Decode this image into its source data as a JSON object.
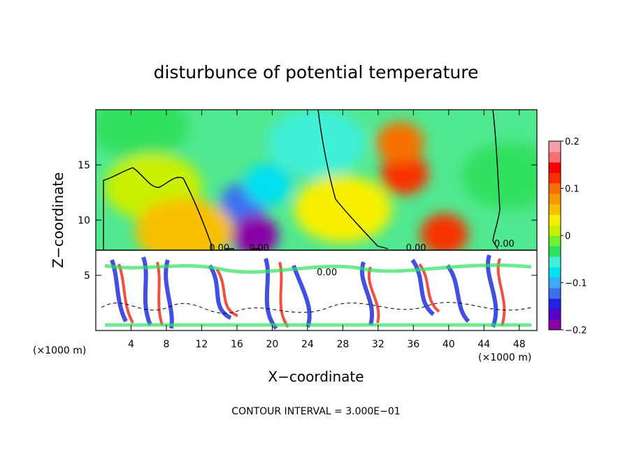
{
  "chart_data": {
    "type": "heatmap",
    "title": "disturbunce of potential temperature",
    "xlabel": "X−coordinate",
    "ylabel": "Z−coordinate",
    "x_unit_left": "(×1000 m)",
    "x_unit_right": "(×1000 m)",
    "footer": "CONTOUR INTERVAL = 3.000E−01",
    "xlim": [
      0,
      50
    ],
    "ylim": [
      0,
      20
    ],
    "x_ticks": [
      4,
      8,
      12,
      16,
      20,
      24,
      28,
      32,
      36,
      40,
      44,
      48
    ],
    "x_tick_labels": [
      "4",
      "8",
      "12",
      "16",
      "20",
      "24",
      "28",
      "32",
      "36",
      "40",
      "44",
      "48"
    ],
    "y_ticks": [
      5,
      10,
      15
    ],
    "y_tick_labels": [
      "5",
      "10",
      "15"
    ],
    "colorbar": {
      "min": -0.2,
      "max": 0.2,
      "ticks": [
        0.2,
        0.1,
        0,
        -0.1,
        -0.2
      ],
      "tick_labels": [
        "0.2",
        "0.1",
        "0",
        "−0.1",
        "−0.2"
      ],
      "colors": [
        "#8a00a8",
        "#5a00c8",
        "#2222e0",
        "#3a70f0",
        "#40a8f8",
        "#00e0f0",
        "#40f0d8",
        "#30e060",
        "#70f030",
        "#c8f000",
        "#f8f000",
        "#f8c000",
        "#f89800",
        "#f87000",
        "#f83000",
        "#f80000",
        "#f87070",
        "#f8a0a8"
      ]
    },
    "contour_labels": [
      {
        "text": "0.00",
        "x": 14.0,
        "z": 7.2
      },
      {
        "text": "0.00",
        "x": 18.5,
        "z": 7.2
      },
      {
        "text": "0.00",
        "x": 36.3,
        "z": 7.2
      },
      {
        "text": "0.00",
        "x": 46.3,
        "z": 7.6
      },
      {
        "text": "0.00",
        "x": 26.2,
        "z": 5.0
      }
    ],
    "field_features": [
      {
        "name": "negative-core-upper",
        "x": 16.8,
        "z": 11.5,
        "value": -0.13
      },
      {
        "name": "negative-core-right",
        "x": 19.5,
        "z": 13.2,
        "value": -0.08
      },
      {
        "name": "negative-core-low",
        "x": 18.0,
        "z": 8.6,
        "value": -0.2
      },
      {
        "name": "positive-core",
        "x": 35.0,
        "z": 14.2,
        "value": 0.13
      },
      {
        "name": "positive-ridge",
        "x": 34.5,
        "z": 17.0,
        "value": 0.11
      },
      {
        "name": "positive-low",
        "x": 39.5,
        "z": 8.7,
        "value": 0.12
      },
      {
        "name": "weak-negative-top",
        "x": 5.0,
        "z": 18.5,
        "value": -0.04
      },
      {
        "name": "weak-positive-left",
        "x": 6.5,
        "z": 13.0,
        "value": 0.02
      },
      {
        "name": "weak-negative-right",
        "x": 47.0,
        "z": 14.0,
        "value": -0.03
      },
      {
        "name": "weak-positive-mid",
        "x": 10.0,
        "z": 9.0,
        "value": 0.06
      },
      {
        "name": "cyan-band",
        "x": 25.0,
        "z": 17.0,
        "value": -0.05
      },
      {
        "name": "green-mid",
        "x": 28.0,
        "z": 11.0,
        "value": 0.03
      }
    ]
  }
}
